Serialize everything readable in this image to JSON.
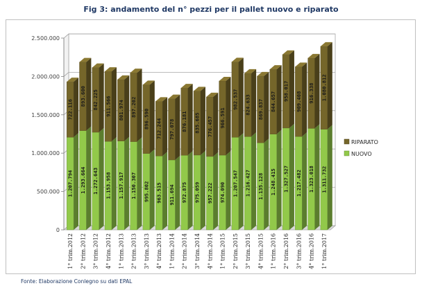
{
  "title": "Fig 3: andamento del n° pezzi per il pallet nuovo e riparato",
  "source": "Fonte: Elaborazione Conlegno su dati EPAL",
  "chart_data": {
    "type": "bar",
    "stacked": true,
    "three_d": true,
    "ylim": [
      0,
      2500000
    ],
    "ytick_values": [
      0,
      500000,
      1000000,
      1500000,
      2000000,
      2500000
    ],
    "ytick_labels": [
      "0",
      "500.000",
      "1.000.000",
      "1.500.000",
      "2.000.000",
      "2.500.000"
    ],
    "grid": true,
    "legend_position": "right",
    "categories": [
      "1° trim.2012",
      "2° trim.2012",
      "3° trim.2012",
      "4° trim.2012",
      "1° trim.2013",
      "2° trim.2013",
      "3° trim.2013",
      "4° trim.2013",
      "1° trim.2014",
      "2° trim.2014",
      "3° trim.2014",
      "4° trim.2014",
      "1° trim.2015",
      "2° trim.2015",
      "3° trim.2015",
      "4° trim.2015",
      "1° trim.2016",
      "2° trim.2016",
      "3° trim.2016",
      "4° trim.2016",
      "1° trim.2017"
    ],
    "series": [
      {
        "name": "NUOVO",
        "color": "#92c94a",
        "values": [
          1207794,
          1293664,
          1272643,
          1153958,
          1157917,
          1150307,
          995802,
          963515,
          911694,
          972875,
          975059,
          957222,
          974090,
          1207547,
          1216427,
          1135128,
          1248415,
          1327527,
          1217482,
          1323018,
          1311732
        ],
        "labels": [
          "1.207.794",
          "1.293.664",
          "1.272.643",
          "1.153.958",
          "1.157.917",
          "1.150.307",
          "995.802",
          "963.515",
          "911.694",
          "972.875",
          "975.059",
          "957.222",
          "974.090",
          "1.207.547",
          "1.216.427",
          "1.135.128",
          "1.248.415",
          "1.327.527",
          "1.217.482",
          "1.323.018",
          "1.311.732"
        ]
      },
      {
        "name": "RIPARATO",
        "color": "#75662a",
        "values": [
          722116,
          893600,
          842225,
          911566,
          801974,
          897202,
          896590,
          712244,
          797078,
          876181,
          835685,
          776457,
          966591,
          982537,
          824633,
          869837,
          844657,
          958017,
          909408,
          916338,
          1080812
        ],
        "labels": [
          "722.116",
          "893.600",
          "842.225",
          "911.566",
          "801.974",
          "897.202",
          "896.590",
          "712.244",
          "797.078",
          "876.181",
          "835.685",
          "776.457",
          "966.591",
          "982.537",
          "824.633",
          "869.837",
          "844.657",
          "958.017",
          "909.408",
          "916.338",
          "1.080.812"
        ]
      }
    ]
  }
}
